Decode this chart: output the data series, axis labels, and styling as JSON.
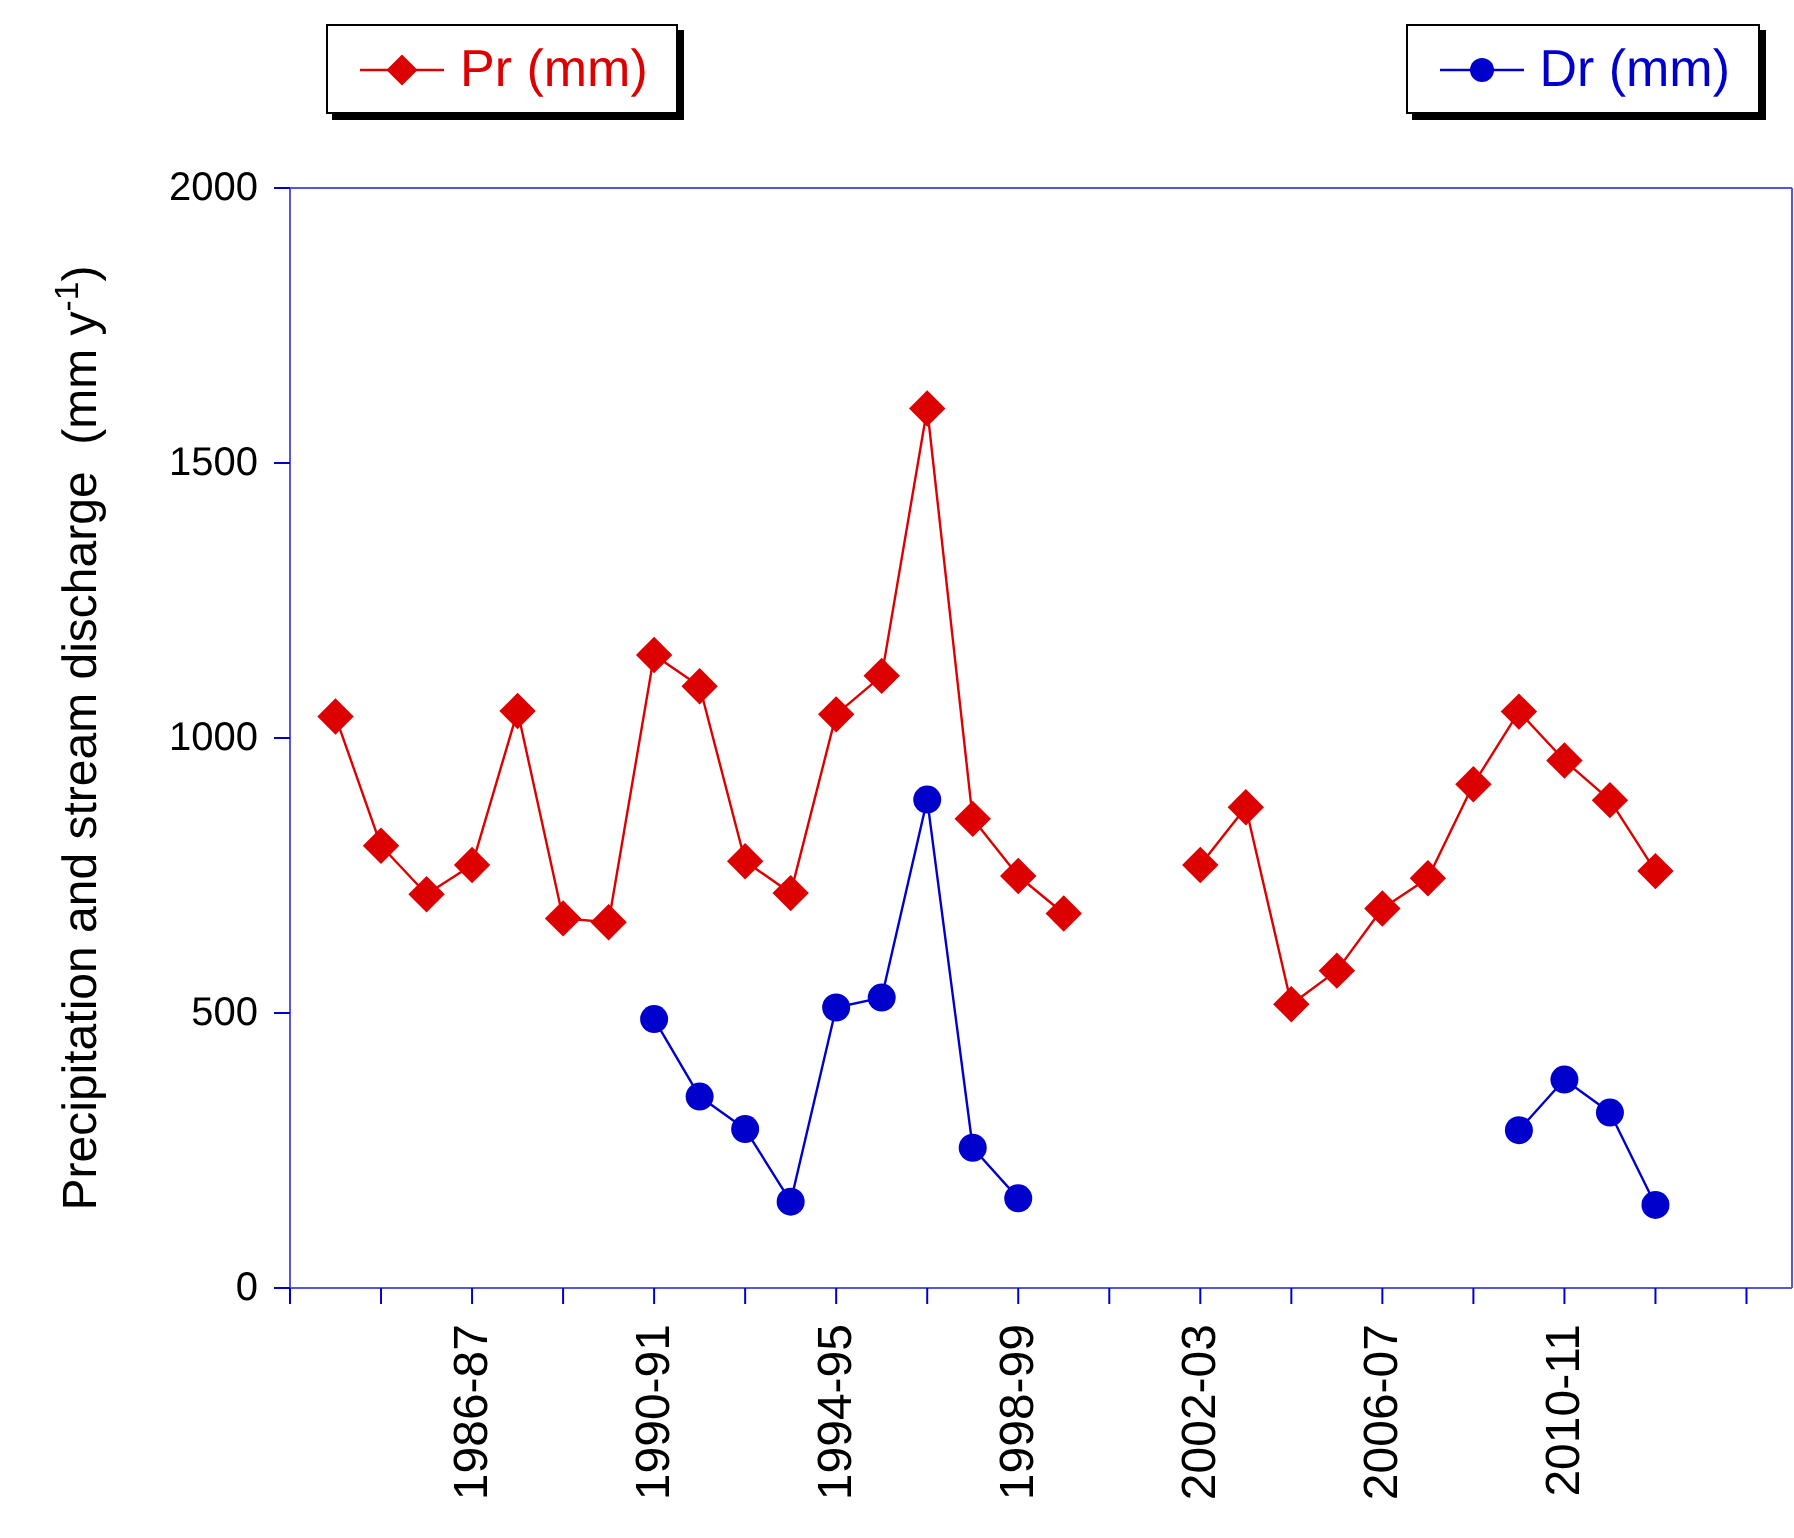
{
  "chart_data": {
    "type": "line",
    "ylabel": "Precipitation and stream discharge  (mm y$^{-1}$)",
    "categories": [
      null,
      null,
      null,
      null,
      "1986-87",
      null,
      null,
      null,
      "1990-91",
      null,
      null,
      null,
      "1994-95",
      null,
      null,
      null,
      "1998-99",
      null,
      null,
      null,
      "2002-03",
      null,
      null,
      null,
      "2006-07",
      null,
      null,
      null,
      "2010-11",
      null,
      null,
      null,
      null,
      null
    ],
    "series": [
      {
        "name": "Pr (mm)",
        "color": "#dd0000",
        "marker": "diamond",
        "values": [
          null,
          1039,
          804,
          716,
          769,
          1049,
          672,
          665,
          1151,
          1094,
          776,
          718,
          1043,
          1113,
          1599,
          853,
          749,
          681,
          null,
          null,
          769,
          874,
          516,
          577,
          690,
          745,
          916,
          1048,
          959,
          887,
          758,
          null,
          null,
          null
        ]
      },
      {
        "name": "Dr (mm)",
        "color": "#0000cc",
        "marker": "circle",
        "values": [
          null,
          null,
          null,
          null,
          null,
          null,
          null,
          null,
          489,
          348,
          289,
          157,
          510,
          528,
          888,
          255,
          163,
          null,
          null,
          null,
          null,
          null,
          null,
          null,
          null,
          null,
          null,
          287,
          379,
          319,
          151,
          null,
          null,
          null
        ]
      }
    ],
    "ylim": [
      0,
      2000
    ],
    "yticks": [
      0,
      500,
      1000,
      1500,
      2000
    ],
    "grid": false,
    "legend": "top",
    "line_style": "solid"
  }
}
